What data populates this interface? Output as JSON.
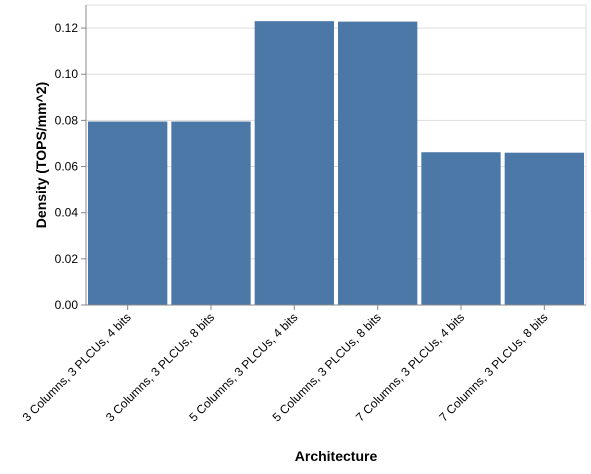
{
  "chart_data": {
    "type": "bar",
    "title": "",
    "xlabel": "Architecture",
    "ylabel": "Density (TOPS/mm^2)",
    "categories": [
      "3 Columns, 3 PLCUs, 4 bits",
      "3 Columns, 3 PLCUs, 8 bits",
      "5 Columns, 3 PLCUs, 4 bits",
      "5 Columns, 3 PLCUs, 8 bits",
      "7 Columns, 3 PLCUs, 4 bits",
      "7 Columns, 3 PLCUs, 8 bits"
    ],
    "values": [
      0.0795,
      0.0795,
      0.123,
      0.1228,
      0.0662,
      0.066
    ],
    "ylim": [
      0,
      0.13
    ],
    "yticks": [
      0.0,
      0.02,
      0.04,
      0.06,
      0.08,
      0.1,
      0.12
    ],
    "ytick_labels": [
      "0.00",
      "0.02",
      "0.04",
      "0.06",
      "0.08",
      "0.10",
      "0.12"
    ],
    "grid": true,
    "colors": {
      "bar": "#4c78a8",
      "grid": "#dddddd",
      "axis": "#888888",
      "border": "#dddddd"
    }
  }
}
